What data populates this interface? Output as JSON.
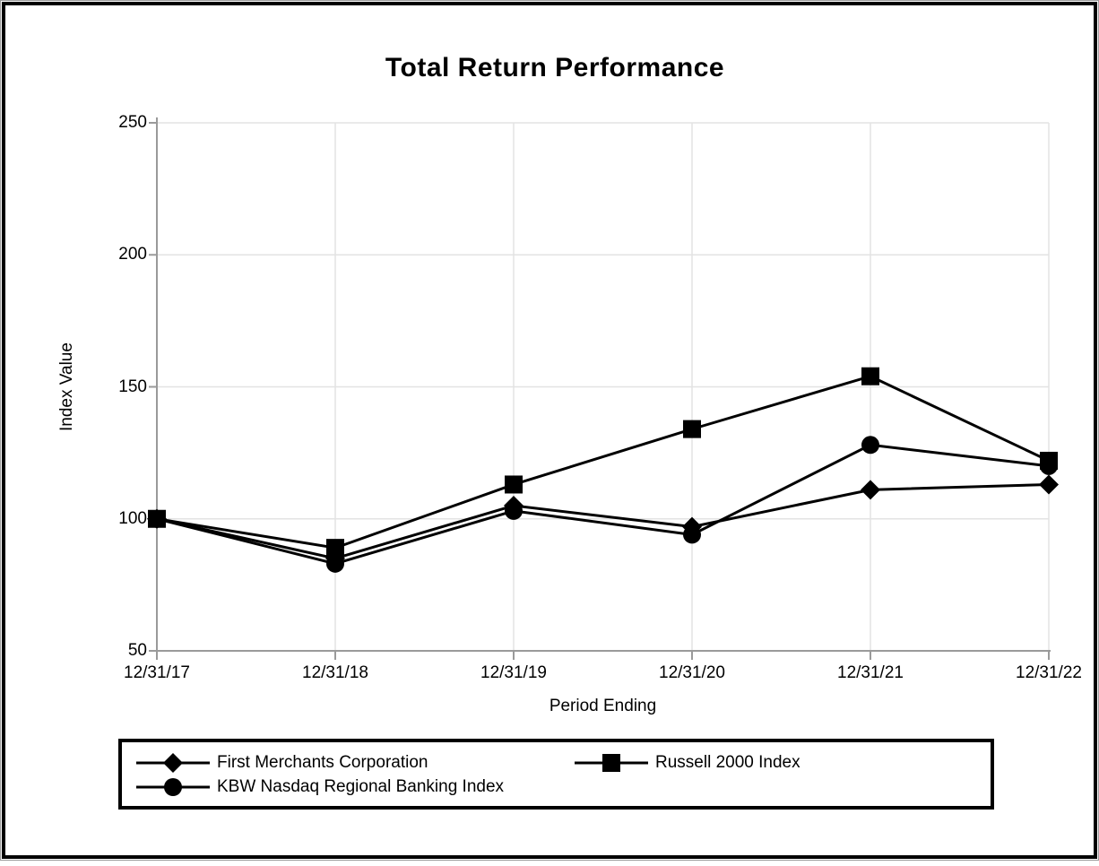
{
  "page": {
    "title": "Total Return Performance"
  },
  "axes": {
    "x_label": "Period Ending",
    "y_label": "Index Value"
  },
  "chart_data": {
    "type": "line",
    "title": "Total Return Performance",
    "xlabel": "Period Ending",
    "ylabel": "Index Value",
    "categories": [
      "12/31/17",
      "12/31/18",
      "12/31/19",
      "12/31/20",
      "12/31/21",
      "12/31/22"
    ],
    "series": [
      {
        "name": "First Merchants Corporation",
        "marker": "diamond",
        "color": "#000000",
        "values": [
          100,
          85,
          105,
          97,
          111,
          113
        ]
      },
      {
        "name": "KBW Nasdaq Regional Banking Index",
        "marker": "circle",
        "color": "#000000",
        "values": [
          100,
          83,
          103,
          94,
          128,
          120
        ]
      },
      {
        "name": "Russell 2000 Index",
        "marker": "square",
        "color": "#000000",
        "values": [
          100,
          89,
          113,
          134,
          154,
          122
        ]
      }
    ],
    "ylim": [
      50,
      250
    ],
    "yticks": [
      50,
      100,
      150,
      200,
      250
    ],
    "grid": true,
    "legend_position": "bottom",
    "colors": {
      "series": "#000000",
      "grid": "#e3e3e3",
      "axis": "#9a9a9a",
      "text": "#000000"
    }
  },
  "legend": {
    "marker_icons": [
      "diamond-marker-icon",
      "square-marker-icon",
      "circle-marker-icon"
    ]
  }
}
